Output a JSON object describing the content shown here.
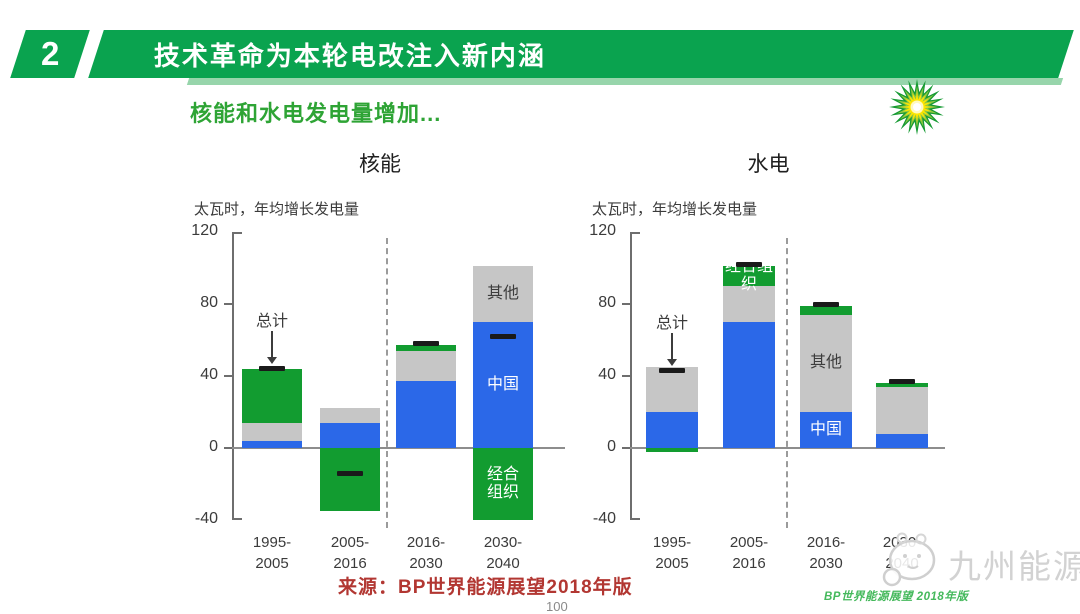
{
  "header": {
    "slide_number": "2",
    "title": "技术革命为本轮电改注入新内涵"
  },
  "subtitle": "核能和水电发电量增加...",
  "branding": {
    "bp_logo": "bp-helios-sunflower",
    "watermark_name": "九州能源",
    "watermark_caption": "BP世界能源展望 2018年版"
  },
  "footer": {
    "source": "来源：BP世界能源展望2018年版",
    "page_number": "100"
  },
  "colors": {
    "banner_green": "#0aa34f",
    "banner_shadow": "#97d5ab",
    "subtitle_green": "#2ea435",
    "china_blue": "#2b68e8",
    "other_gray": "#c6c6c6",
    "oecd_green": "#129c30",
    "marker_black": "#1a1a1a",
    "source_red": "#b23732",
    "watermark_gray": "#d2d2d2",
    "caption_green": "#45b95c"
  },
  "chart_data": [
    {
      "type": "bar",
      "title": "核能",
      "ylabel": "太瓦时，年均增长发电量",
      "ylim": [
        -40,
        120
      ],
      "yticks": [
        120,
        80,
        40,
        0,
        -40
      ],
      "grid": false,
      "stacked": true,
      "legend_position": "in-bar labels",
      "series_names": {
        "china": "中国",
        "other": "其他",
        "oecd": "经合组织",
        "total_marker": "总计"
      },
      "forecast_divider_after_bar": 2,
      "bars": [
        {
          "category": [
            "1995-",
            "2005"
          ],
          "segments": [
            {
              "series": "china",
              "from": 0,
              "to": 4
            },
            {
              "series": "other",
              "from": 4,
              "to": 14
            },
            {
              "series": "oecd",
              "from": 14,
              "to": 44
            }
          ],
          "total_marker": 44,
          "annotation": "总计"
        },
        {
          "category": [
            "2005-",
            "2016"
          ],
          "segments": [
            {
              "series": "china",
              "from": 0,
              "to": 14
            },
            {
              "series": "other",
              "from": 14,
              "to": 22
            },
            {
              "series": "oecd",
              "from": 0,
              "to": -35
            }
          ],
          "total_marker": -14
        },
        {
          "category": [
            "2016-",
            "2030"
          ],
          "segments": [
            {
              "series": "china",
              "from": 0,
              "to": 37
            },
            {
              "series": "other",
              "from": 37,
              "to": 54
            },
            {
              "series": "oecd",
              "from": 54,
              "to": 57
            }
          ],
          "total_marker": 58
        },
        {
          "category": [
            "2030-",
            "2040"
          ],
          "segments": [
            {
              "series": "china",
              "from": 0,
              "to": 70,
              "label": "中国"
            },
            {
              "series": "other",
              "from": 70,
              "to": 101,
              "label": "其他"
            },
            {
              "series": "oecd",
              "from": 0,
              "to": -40,
              "label": "经合\n组织"
            }
          ],
          "total_marker": 62
        }
      ]
    },
    {
      "type": "bar",
      "title": "水电",
      "ylabel": "太瓦时，年均增长发电量",
      "ylim": [
        -40,
        120
      ],
      "yticks": [
        120,
        80,
        40,
        0,
        -40
      ],
      "grid": false,
      "stacked": true,
      "legend_position": "in-bar labels",
      "series_names": {
        "china": "中国",
        "other": "其他",
        "oecd": "经合组织",
        "total_marker": "总计"
      },
      "forecast_divider_after_bar": 2,
      "bars": [
        {
          "category": [
            "1995-",
            "2005"
          ],
          "segments": [
            {
              "series": "oecd",
              "from": 0,
              "to": -2
            },
            {
              "series": "china",
              "from": 0,
              "to": 20
            },
            {
              "series": "other",
              "from": 20,
              "to": 45
            }
          ],
          "total_marker": 43,
          "annotation": "总计"
        },
        {
          "category": [
            "2005-",
            "2016"
          ],
          "segments": [
            {
              "series": "china",
              "from": 0,
              "to": 70
            },
            {
              "series": "other",
              "from": 70,
              "to": 90
            },
            {
              "series": "oecd",
              "from": 90,
              "to": 101,
              "label": "经合组织"
            }
          ],
          "total_marker": 102
        },
        {
          "category": [
            "2016-",
            "2030"
          ],
          "segments": [
            {
              "series": "china",
              "from": 0,
              "to": 20,
              "label": "中国"
            },
            {
              "series": "other",
              "from": 20,
              "to": 74,
              "label": "其他"
            },
            {
              "series": "oecd",
              "from": 74,
              "to": 79
            }
          ],
          "total_marker": 80
        },
        {
          "category": [
            "2030-",
            "2040"
          ],
          "segments": [
            {
              "series": "china",
              "from": 0,
              "to": 8
            },
            {
              "series": "other",
              "from": 8,
              "to": 34
            },
            {
              "series": "oecd",
              "from": 34,
              "to": 36
            }
          ],
          "total_marker": 37
        }
      ]
    }
  ]
}
